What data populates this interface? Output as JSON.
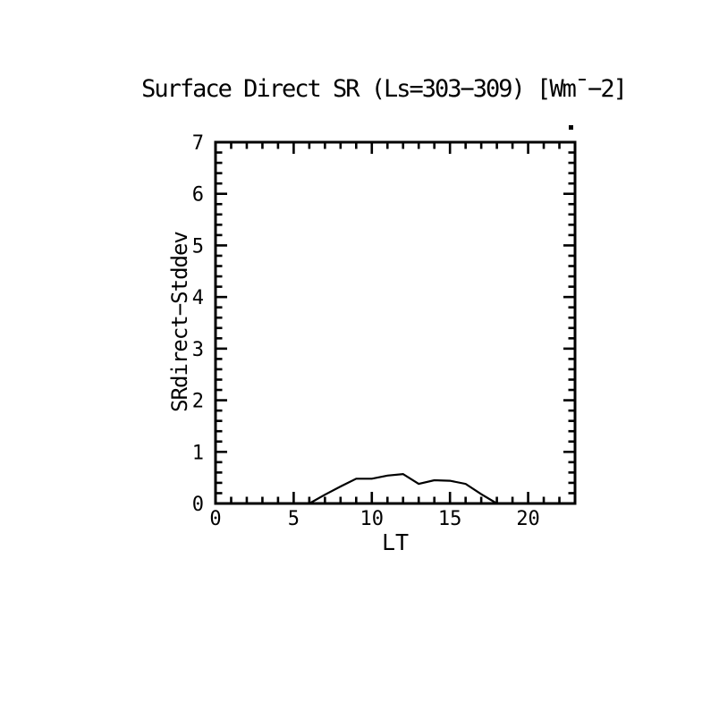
{
  "page": {
    "background_color": "#ffffff",
    "foreground_color": "#000000"
  },
  "chart_data": {
    "type": "line",
    "title": "Surface Direct SR (Ls=303−309) [Wm¯−2]",
    "xlabel": "LT",
    "ylabel": "SRdirect−Stddev",
    "x": [
      0,
      1,
      2,
      3,
      4,
      5,
      6,
      7,
      8,
      9,
      10,
      11,
      12,
      13,
      14,
      15,
      16,
      17,
      18,
      19,
      20,
      21,
      22,
      23
    ],
    "values": [
      0,
      0,
      0,
      0,
      0,
      0,
      0,
      0.17,
      0.33,
      0.48,
      0.48,
      0.54,
      0.57,
      0.38,
      0.45,
      0.44,
      0.38,
      0.18,
      0,
      0,
      0,
      0,
      0,
      0
    ],
    "xlim": [
      0,
      23
    ],
    "ylim": [
      0,
      7
    ],
    "xticks_major": [
      0,
      5,
      10,
      15,
      20
    ],
    "xtick_labels": [
      "0",
      "5",
      "10",
      "15",
      "20"
    ],
    "yticks_major": [
      0,
      1,
      2,
      3,
      4,
      5,
      6,
      7
    ],
    "ytick_labels": [
      "0",
      "1",
      "2",
      "3",
      "4",
      "5",
      "6",
      "7"
    ],
    "x_minor_step": 1,
    "y_minor_step": 0.2,
    "grid": false,
    "legend": "none",
    "line_color": "#000000",
    "frame_color": "#000000"
  },
  "artifacts": {
    "stray_dot_present": true
  }
}
